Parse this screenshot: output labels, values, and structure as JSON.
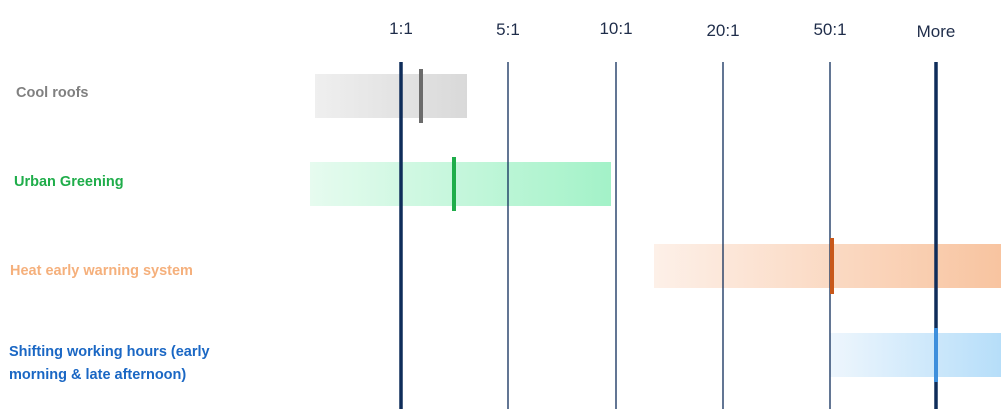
{
  "chart_data": {
    "type": "range",
    "x_ticks": [
      "1:1",
      "5:1",
      "10:1",
      "20:1",
      "50:1",
      "More"
    ],
    "rows": [
      {
        "label_lines": [
          "Cool roofs"
        ],
        "range": [
          0.85,
          2.6
        ],
        "marker": 1.2,
        "color": "#808080",
        "fill_from": "#efefef",
        "fill_to": "#d9d9d9",
        "marker_color": "#6b6b6b"
      },
      {
        "label_lines": [
          "Urban Greening"
        ],
        "range": [
          0.8,
          5.5
        ],
        "marker": 1.6,
        "color": "#1fad4a",
        "fill_from": "#e6fbef",
        "fill_to": "#a3f2c8",
        "marker_color": "#1fad4a"
      },
      {
        "label_lines": [
          "Heat early warning system"
        ],
        "range": [
          6.0,
          10.7
        ],
        "marker": 9.0,
        "color": "#f5b07c",
        "fill_from": "#fdf0e8",
        "fill_to": "#f8c4a0",
        "marker_color": "#c8581a"
      },
      {
        "label_lines": [
          "Shifting working hours (early",
          "morning & late afternoon)"
        ],
        "range": [
          9.0,
          10.7
        ],
        "marker": 10.0,
        "color": "#1a67c4",
        "fill_from": "#eef6fd",
        "fill_to": "#b6def9",
        "marker_color": "#3d8fdc"
      }
    ]
  }
}
